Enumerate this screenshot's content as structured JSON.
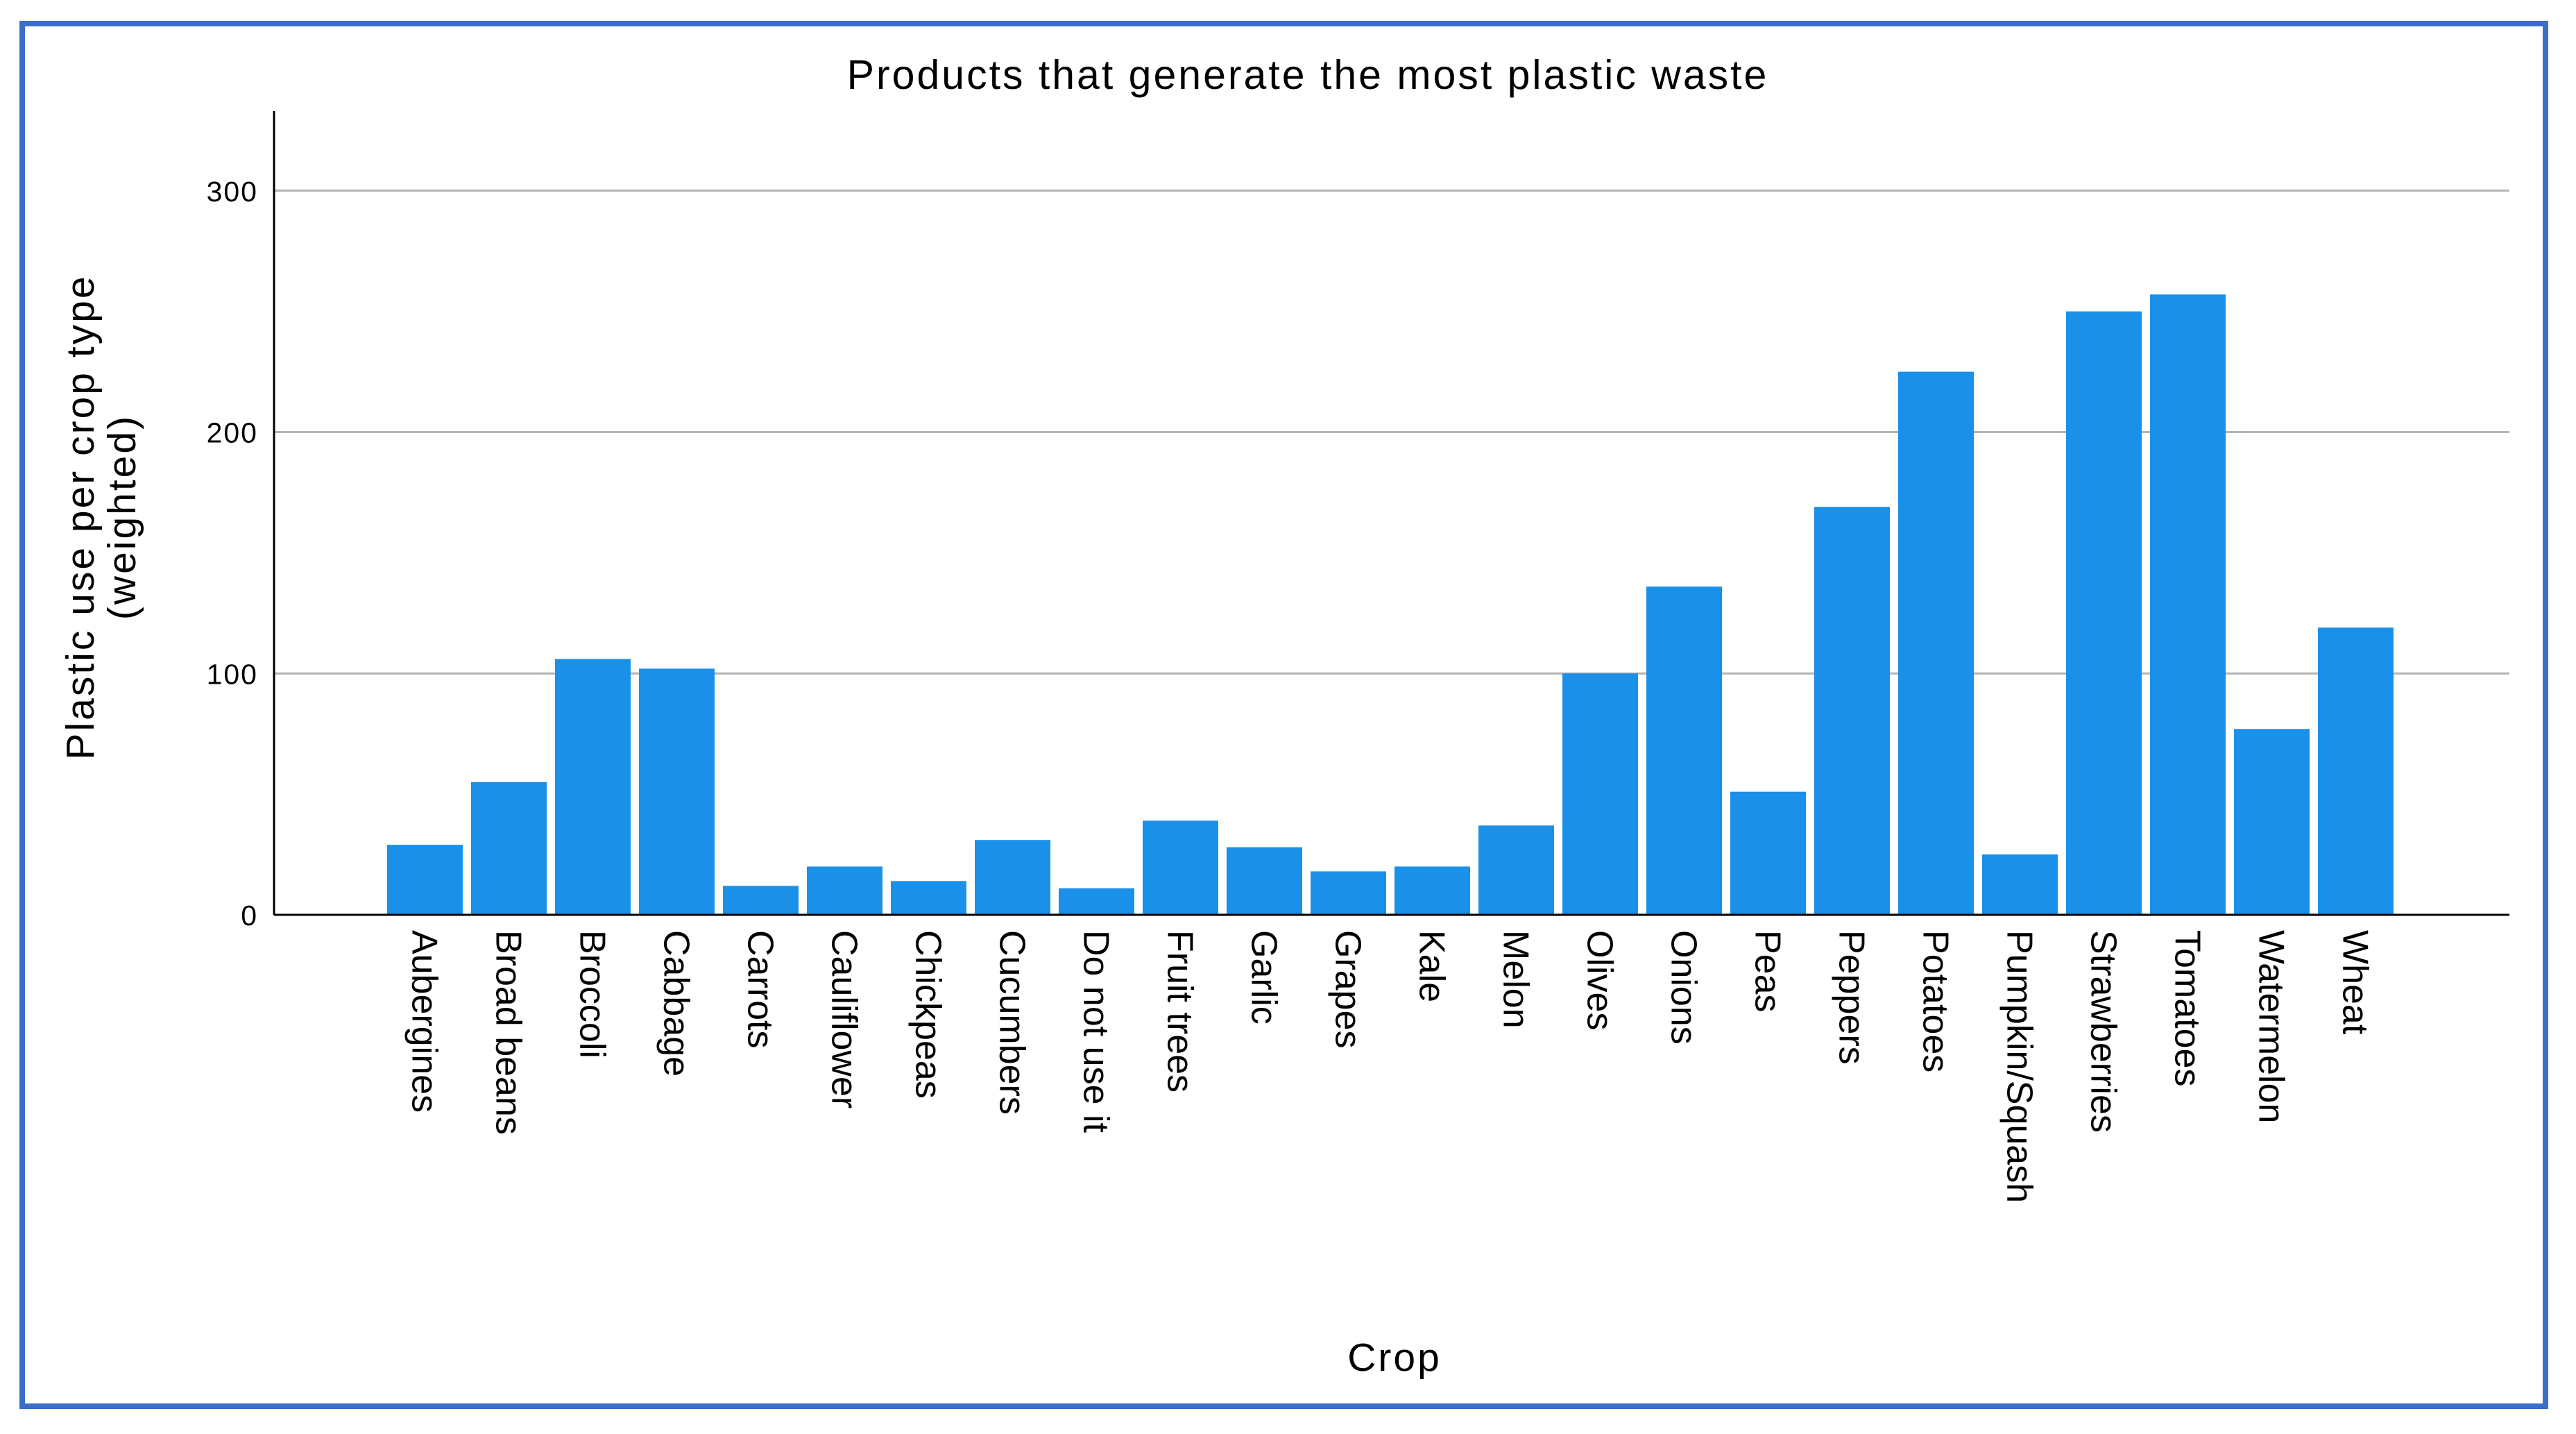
{
  "chart_data": {
    "type": "bar",
    "title": "Products that generate the most plastic waste",
    "xlabel": "Crop",
    "ylabel": "Plastic use per crop type",
    "ylabel_line2": "(weighted)",
    "ylim": [
      0,
      333
    ],
    "yticks": [
      0,
      100,
      200,
      300
    ],
    "grid": true,
    "bar_color": "#1a90e8",
    "categories": [
      "Aubergines",
      "Broad beans",
      "Broccoli",
      "Cabbage",
      "Carrots",
      "Cauliflower",
      "Chickpeas",
      "Cucumbers",
      "Do not use it",
      "Fruit trees",
      "Garlic",
      "Grapes",
      "Kale",
      "Melon",
      "Olives",
      "Onions",
      "Peas",
      "Peppers",
      "Potatoes",
      "Pumpkin/Squash",
      "Strawberries",
      "Tomatoes",
      "Watermelon",
      "Wheat"
    ],
    "values": [
      29,
      55,
      106,
      102,
      12,
      20,
      14,
      31,
      11,
      39,
      28,
      18,
      20,
      37,
      100,
      136,
      51,
      169,
      225,
      25,
      250,
      257,
      77,
      119
    ]
  },
  "colors": {
    "frame_border": "#3a6ec9",
    "gridline": "#b4b4b4",
    "axis": "#000000"
  }
}
